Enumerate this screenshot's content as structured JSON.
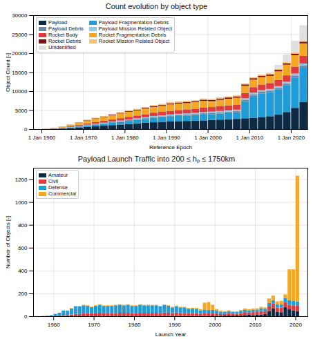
{
  "chart_data": [
    {
      "type": "bar",
      "stacked": true,
      "grid": true,
      "legend": "upper left",
      "title": "Count evolution by object type",
      "xlabel": "Reference Epoch",
      "ylabel": "Object Count [-]",
      "x": [
        1960,
        1962,
        1964,
        1966,
        1968,
        1970,
        1972,
        1974,
        1976,
        1978,
        1980,
        1982,
        1984,
        1986,
        1988,
        1990,
        1992,
        1994,
        1996,
        1998,
        2000,
        2002,
        2004,
        2006,
        2008,
        2010,
        2012,
        2014,
        2016,
        2018,
        2020,
        2022
      ],
      "xlim": [
        1958,
        2024
      ],
      "xticks": [
        {
          "value": 1960,
          "label": "1 Jan 1960"
        },
        {
          "value": 1970,
          "label": "1 Jan 1970"
        },
        {
          "value": 1980,
          "label": "1 Jan 1980"
        },
        {
          "value": 1990,
          "label": "1 Jan 1990"
        },
        {
          "value": 2000,
          "label": "1 Jan 2000"
        },
        {
          "value": 2010,
          "label": "1 Jan 2010"
        },
        {
          "value": 2020,
          "label": "1 Jan 2020"
        }
      ],
      "ylim": [
        0,
        30000
      ],
      "yticks": [
        0,
        5000,
        10000,
        15000,
        20000,
        25000,
        30000
      ],
      "series": [
        {
          "name": "Payload",
          "color": "#0d2a45",
          "values": [
            20,
            60,
            150,
            300,
            450,
            600,
            750,
            900,
            1050,
            1200,
            1350,
            1500,
            1650,
            1800,
            1900,
            2000,
            2100,
            2150,
            2200,
            2300,
            2400,
            2500,
            2600,
            2700,
            2850,
            3000,
            3200,
            3400,
            3800,
            4500,
            5600,
            7200
          ]
        },
        {
          "name": "Payload Fragmentation Debris",
          "color": "#1f9bd7",
          "values": [
            0,
            20,
            80,
            150,
            250,
            350,
            450,
            500,
            600,
            700,
            800,
            900,
            1000,
            1150,
            1200,
            1300,
            1350,
            1400,
            1450,
            1550,
            1550,
            1600,
            1650,
            1700,
            4500,
            5800,
            6200,
            6300,
            6600,
            7000,
            8000,
            9000
          ]
        },
        {
          "name": "Payload Debris",
          "color": "#6d8aa0",
          "values": [
            10,
            20,
            40,
            60,
            80,
            100,
            120,
            140,
            160,
            180,
            200,
            220,
            240,
            260,
            270,
            280,
            290,
            300,
            310,
            320,
            330,
            340,
            350,
            360,
            380,
            400,
            420,
            440,
            460,
            480,
            520,
            560
          ]
        },
        {
          "name": "Payload Mission Related Object",
          "color": "#8ec7e8",
          "values": [
            10,
            20,
            40,
            60,
            80,
            100,
            120,
            140,
            160,
            180,
            200,
            220,
            240,
            260,
            270,
            280,
            290,
            300,
            310,
            320,
            330,
            340,
            350,
            360,
            380,
            400,
            420,
            440,
            460,
            480,
            500,
            520
          ]
        },
        {
          "name": "Rocket Body",
          "color": "#e03a3e",
          "values": [
            20,
            60,
            120,
            200,
            280,
            350,
            420,
            500,
            560,
            620,
            680,
            740,
            800,
            860,
            900,
            950,
            1000,
            1050,
            1100,
            1150,
            1200,
            1250,
            1300,
            1350,
            1400,
            1450,
            1500,
            1550,
            1600,
            1700,
            1850,
            2000
          ]
        },
        {
          "name": "Rocket Fragmentation Debris",
          "color": "#f5a623",
          "values": [
            30,
            100,
            230,
            350,
            550,
            800,
            900,
            1000,
            1150,
            1250,
            1350,
            1350,
            1450,
            1500,
            1550,
            1700,
            1700,
            1650,
            1700,
            1800,
            1550,
            1700,
            1750,
            1800,
            1900,
            2000,
            1950,
            1900,
            2300,
            2800,
            3000,
            3300
          ]
        },
        {
          "name": "Rocket Debris",
          "color": "#7a1010",
          "values": [
            5,
            10,
            20,
            40,
            60,
            80,
            100,
            120,
            140,
            160,
            180,
            200,
            220,
            240,
            250,
            260,
            270,
            280,
            290,
            300,
            310,
            320,
            330,
            340,
            350,
            360,
            370,
            380,
            390,
            400,
            420,
            440
          ]
        },
        {
          "name": "Rocket Mission Related Object",
          "color": "#f8c27a",
          "values": [
            5,
            10,
            20,
            40,
            50,
            120,
            140,
            150,
            160,
            190,
            210,
            230,
            250,
            280,
            310,
            330,
            350,
            320,
            290,
            300,
            280,
            290,
            300,
            290,
            290,
            290,
            290,
            290,
            300,
            320,
            330,
            340
          ]
        },
        {
          "name": "Unidentified",
          "color": "#e0e0e0",
          "values": [
            0,
            0,
            0,
            0,
            0,
            0,
            0,
            0,
            0,
            0,
            0,
            0,
            0,
            0,
            0,
            0,
            0,
            0,
            0,
            0,
            0,
            0,
            0,
            0,
            0,
            0,
            0,
            200,
            1000,
            2000,
            3000,
            4000
          ]
        }
      ]
    },
    {
      "type": "bar",
      "stacked": true,
      "grid": true,
      "legend": "upper left",
      "title": "Payload Launch Traffic into 200 ≤ hₚ ≤ 1750km",
      "xlabel": "Launch Year",
      "ylabel": "Number of Objects [-]",
      "x": [
        1957,
        1958,
        1959,
        1960,
        1961,
        1962,
        1963,
        1964,
        1965,
        1966,
        1967,
        1968,
        1969,
        1970,
        1971,
        1972,
        1973,
        1974,
        1975,
        1976,
        1977,
        1978,
        1979,
        1980,
        1981,
        1982,
        1983,
        1984,
        1985,
        1986,
        1987,
        1988,
        1989,
        1990,
        1991,
        1992,
        1993,
        1994,
        1995,
        1996,
        1997,
        1998,
        1999,
        2000,
        2001,
        2002,
        2003,
        2004,
        2005,
        2006,
        2007,
        2008,
        2009,
        2010,
        2011,
        2012,
        2013,
        2014,
        2015,
        2016,
        2017,
        2018,
        2019,
        2020
      ],
      "xlim": [
        1955,
        2023
      ],
      "xticks": [
        1960,
        1970,
        1980,
        1990,
        2000,
        2010,
        2020
      ],
      "ylim": [
        0,
        1300
      ],
      "yticks": [
        0,
        200,
        400,
        600,
        800,
        1000,
        1200
      ],
      "series": [
        {
          "name": "Amateur",
          "color": "#0d2a45",
          "values": [
            0,
            0,
            0,
            0,
            0,
            0,
            0,
            0,
            0,
            0,
            0,
            0,
            0,
            0,
            0,
            0,
            0,
            0,
            0,
            0,
            0,
            0,
            0,
            0,
            0,
            0,
            0,
            0,
            0,
            0,
            2,
            1,
            2,
            3,
            2,
            2,
            1,
            2,
            3,
            2,
            3,
            4,
            5,
            3,
            4,
            5,
            6,
            8,
            6,
            7,
            10,
            12,
            10,
            12,
            15,
            20,
            45,
            70,
            40,
            35,
            80,
            60,
            50,
            45
          ]
        },
        {
          "name": "Civil",
          "color": "#e03a3e",
          "values": [
            1,
            2,
            3,
            5,
            8,
            10,
            10,
            15,
            20,
            20,
            25,
            25,
            25,
            25,
            30,
            25,
            25,
            25,
            25,
            30,
            30,
            30,
            25,
            25,
            30,
            30,
            30,
            30,
            30,
            25,
            30,
            30,
            25,
            30,
            25,
            25,
            25,
            25,
            25,
            20,
            25,
            20,
            20,
            20,
            15,
            15,
            20,
            15,
            15,
            20,
            25,
            20,
            25,
            25,
            30,
            25,
            40,
            40,
            35,
            40,
            45,
            40,
            45,
            50
          ]
        },
        {
          "name": "Defense",
          "color": "#1f9bd7",
          "values": [
            1,
            3,
            7,
            15,
            22,
            40,
            38,
            52,
            67,
            65,
            70,
            65,
            55,
            65,
            70,
            65,
            65,
            65,
            70,
            70,
            65,
            70,
            65,
            65,
            70,
            65,
            65,
            65,
            65,
            60,
            65,
            60,
            50,
            55,
            50,
            50,
            40,
            40,
            35,
            30,
            30,
            30,
            30,
            25,
            20,
            18,
            18,
            15,
            15,
            20,
            20,
            20,
            20,
            20,
            25,
            20,
            30,
            30,
            30,
            30,
            35,
            40,
            40,
            35
          ]
        },
        {
          "name": "Commercial",
          "color": "#f5a623",
          "values": [
            0,
            0,
            0,
            0,
            0,
            0,
            2,
            3,
            3,
            5,
            5,
            5,
            5,
            5,
            5,
            5,
            5,
            5,
            5,
            5,
            5,
            5,
            5,
            5,
            5,
            5,
            5,
            5,
            5,
            5,
            5,
            5,
            5,
            5,
            5,
            5,
            5,
            5,
            10,
            10,
            60,
            70,
            45,
            15,
            10,
            7,
            7,
            5,
            7,
            8,
            12,
            10,
            12,
            12,
            12,
            12,
            40,
            40,
            25,
            30,
            30,
            270,
            275,
            1100
          ]
        }
      ]
    }
  ]
}
